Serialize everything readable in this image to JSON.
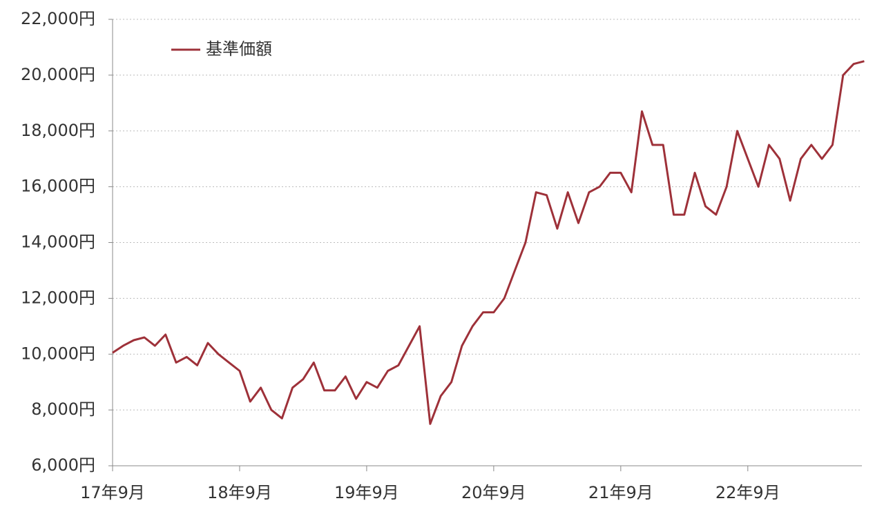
{
  "chart_data": {
    "type": "line",
    "categories": [
      "17年9月",
      null,
      null,
      null,
      null,
      null,
      null,
      null,
      null,
      null,
      null,
      null,
      "18年9月",
      null,
      null,
      null,
      null,
      null,
      null,
      null,
      null,
      null,
      null,
      null,
      "19年9月",
      null,
      null,
      null,
      null,
      null,
      null,
      null,
      null,
      null,
      null,
      null,
      "20年9月",
      null,
      null,
      null,
      null,
      null,
      null,
      null,
      null,
      null,
      null,
      null,
      "21年9月",
      null,
      null,
      null,
      null,
      null,
      null,
      null,
      null,
      null,
      null,
      null,
      "22年9月",
      null,
      null,
      null,
      null,
      null,
      null,
      null,
      null,
      null,
      null,
      null
    ],
    "series": [
      {
        "name": "基準価額",
        "color": "#9e3139",
        "values": [
          10050,
          10300,
          10500,
          10600,
          10300,
          10700,
          9700,
          9900,
          9600,
          10400,
          10000,
          9700,
          9400,
          8300,
          8800,
          8000,
          7700,
          8800,
          9100,
          9700,
          8700,
          8700,
          9200,
          8400,
          9000,
          8800,
          9400,
          9600,
          10300,
          11000,
          7500,
          8500,
          9000,
          10300,
          11000,
          11500,
          11500,
          12000,
          13000,
          14000,
          15800,
          15700,
          14500,
          15800,
          14700,
          15800,
          16000,
          16500,
          16500,
          15800,
          18700,
          17500,
          17500,
          15000,
          15000,
          16500,
          15300,
          15000,
          16000,
          18000,
          17000,
          16000,
          17500,
          17000,
          15500,
          17000,
          17500,
          17000,
          17500,
          20000,
          20400,
          20500
        ]
      }
    ],
    "ylim": [
      6000,
      22000
    ],
    "yticks": [
      {
        "value": 6000,
        "label": "6,000円"
      },
      {
        "value": 8000,
        "label": "8,000円"
      },
      {
        "value": 10000,
        "label": "10,000円"
      },
      {
        "value": 12000,
        "label": "12,000円"
      },
      {
        "value": 14000,
        "label": "14,000円"
      },
      {
        "value": 16000,
        "label": "16,000円"
      },
      {
        "value": 18000,
        "label": "18,000円"
      },
      {
        "value": 20000,
        "label": "20,000円"
      },
      {
        "value": 22000,
        "label": "22,000円"
      }
    ],
    "grid": true,
    "legend": "top-left"
  }
}
